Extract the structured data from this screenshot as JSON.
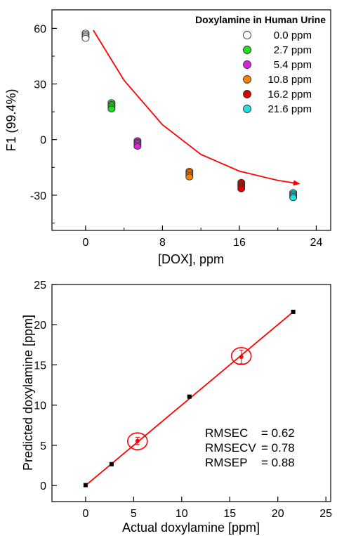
{
  "chart_data": [
    {
      "type": "scatter",
      "title": "Doxylamine in Human Urine",
      "xlabel": "[DOX], ppm",
      "ylabel": "F1 (99.4%)",
      "xlim": [
        -3.5,
        25.5
      ],
      "ylim": [
        -49,
        70
      ],
      "xticks": [
        0,
        8,
        16,
        24
      ],
      "xtick_labels": [
        "0",
        "8",
        "16",
        "24"
      ],
      "yticks": [
        60,
        30,
        0,
        -30
      ],
      "ytick_labels": [
        "60",
        "30",
        "0",
        "-30"
      ],
      "series": [
        {
          "name": "0.0 ppm",
          "color": "#ffffff",
          "x": [
            0,
            0,
            0,
            0,
            0
          ],
          "y": [
            57.5,
            56.8,
            56.0,
            55.3,
            54.6
          ]
        },
        {
          "name": "2.7 ppm",
          "color": "#22dd22",
          "x": [
            2.7,
            2.7,
            2.7,
            2.7,
            2.7
          ],
          "y": [
            20.0,
            19.0,
            18.2,
            17.3,
            16.5
          ]
        },
        {
          "name": "5.4 ppm",
          "color": "#dd22dd",
          "x": [
            5.4,
            5.4,
            5.4,
            5.4,
            5.4
          ],
          "y": [
            -0.5,
            -1.3,
            -2.1,
            -2.9,
            -3.7
          ]
        },
        {
          "name": "10.8 ppm",
          "color": "#ff8000",
          "x": [
            10.8,
            10.8,
            10.8,
            10.8,
            10.8
          ],
          "y": [
            -17.0,
            -17.8,
            -18.6,
            -19.4,
            -20.2
          ]
        },
        {
          "name": "16.2 ppm",
          "color": "#dd0000",
          "x": [
            16.2,
            16.2,
            16.2,
            16.2,
            16.2
          ],
          "y": [
            -23.0,
            -23.9,
            -24.8,
            -25.7,
            -26.6
          ]
        },
        {
          "name": "21.6 ppm",
          "color": "#22dddd",
          "x": [
            21.6,
            21.6,
            21.6,
            21.6,
            21.6
          ],
          "y": [
            -28.5,
            -29.3,
            -30.0,
            -30.7,
            -31.4
          ]
        }
      ],
      "trend_arrow": {
        "color": "#ff0000",
        "x": [
          0.8,
          4,
          8,
          12,
          16,
          20,
          22.2
        ],
        "y": [
          59,
          32,
          8,
          -8,
          -17,
          -22,
          -23.8
        ]
      },
      "legend": "top-right"
    },
    {
      "type": "scatter",
      "xlabel": "Actual doxylamine [ppm]",
      "ylabel": "Predicted doxylamine [ppm]",
      "xlim": [
        -3.5,
        25.5
      ],
      "ylim": [
        -2,
        25
      ],
      "xticks": [
        0,
        5,
        10,
        15,
        20,
        25
      ],
      "xtick_labels": [
        "0",
        "5",
        "10",
        "15",
        "20",
        "25"
      ],
      "yticks": [
        0,
        5,
        10,
        15,
        20,
        25
      ],
      "ytick_labels": [
        "0",
        "5",
        "10",
        "15",
        "20",
        "25"
      ],
      "series": [
        {
          "name": "",
          "color": "#000000",
          "x": [
            0,
            2.7,
            5.4,
            10.8,
            16.2,
            21.6
          ],
          "y": [
            0.05,
            2.65,
            5.55,
            11.05,
            16.0,
            21.6
          ],
          "error": [
            0.1,
            0.1,
            0.45,
            0.15,
            0.85,
            0.1
          ]
        }
      ],
      "fit_line": {
        "color": "#ff0000",
        "x": [
          0,
          21.6
        ],
        "y": [
          0,
          21.6
        ]
      },
      "highlight_circles": [
        {
          "x": 5.4,
          "y": 5.5
        },
        {
          "x": 16.2,
          "y": 16.1
        }
      ],
      "stats": [
        {
          "label": "RMSEC",
          "value": "= 0.62"
        },
        {
          "label": "RMSECV",
          "value": "= 0.78"
        },
        {
          "label": "RMSEP",
          "value": "= 0.88"
        }
      ]
    }
  ]
}
